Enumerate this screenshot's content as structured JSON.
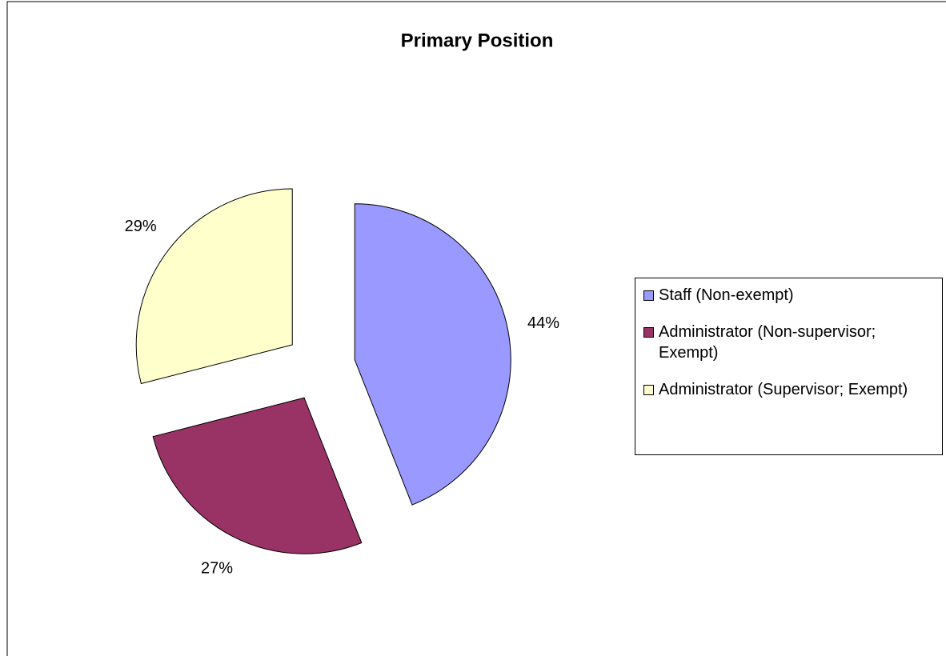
{
  "chart_data": {
    "type": "pie",
    "title": "Primary Position",
    "categories": [
      "Staff (Non-exempt)",
      "Administrator (Non-supervisor; Exempt)",
      "Administrator (Supervisor; Exempt)"
    ],
    "values": [
      44,
      27,
      29
    ],
    "value_labels": [
      "44%",
      "27%",
      "29%"
    ],
    "colors": [
      "#9999ff",
      "#993366",
      "#ffffcc"
    ],
    "legend": "right"
  }
}
